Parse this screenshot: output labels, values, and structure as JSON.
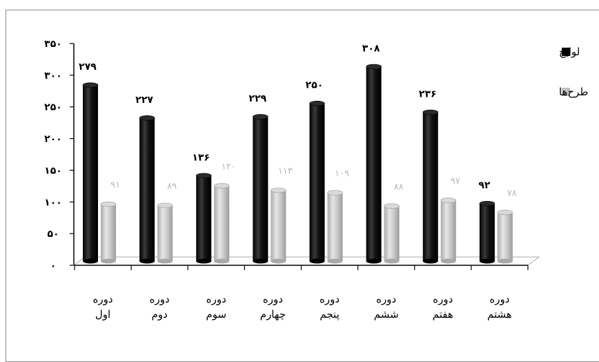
{
  "chart_data": {
    "type": "bar",
    "categories": [
      "دوره اول",
      "دوره دوم",
      "دوره سوم",
      "دوره چهارم",
      "دوره پنجم",
      "دوره ششم",
      "دوره هفتم",
      "دوره هشتم"
    ],
    "category_lines": [
      [
        "دوره",
        "اول"
      ],
      [
        "دوره",
        "دوم"
      ],
      [
        "دوره",
        "سوم"
      ],
      [
        "دوره",
        "چهارم"
      ],
      [
        "دوره",
        "پنجم"
      ],
      [
        "دوره",
        "ششم"
      ],
      [
        "دوره",
        "هفتم"
      ],
      [
        "دوره",
        "هشتم"
      ]
    ],
    "series": [
      {
        "name": "لوایح",
        "color": "#000000",
        "values": [
          279,
          227,
          136,
          229,
          250,
          308,
          236,
          92
        ],
        "labels": [
          "۲۷۹",
          "۲۲۷",
          "۱۳۶",
          "۲۲۹",
          "۲۵۰",
          "۳۰۸",
          "۲۳۶",
          "۹۲"
        ]
      },
      {
        "name": "طرح‌ها",
        "color": "#c0c0c0",
        "values": [
          91,
          89,
          120,
          113,
          109,
          88,
          97,
          78
        ],
        "labels": [
          "۹۱",
          "۸۹",
          "۱۲۰",
          "۱۱۳",
          "۱۰۹",
          "۸۸",
          "۹۷",
          "۷۸"
        ]
      }
    ],
    "legend_labels": [
      "لوایح",
      "طرح‌ها"
    ],
    "ylim": [
      0,
      350
    ],
    "yticks": [
      0,
      50,
      100,
      150,
      200,
      250,
      300,
      350
    ],
    "ytick_labels": [
      "۰",
      "۵۰",
      "۱۰۰",
      "۱۵۰",
      "۲۰۰",
      "۲۵۰",
      "۳۰۰",
      "۳۵۰"
    ],
    "title": "",
    "xlabel": "",
    "ylabel": "",
    "grid": false,
    "legend_position": "right",
    "style": "3d-cylinder"
  }
}
